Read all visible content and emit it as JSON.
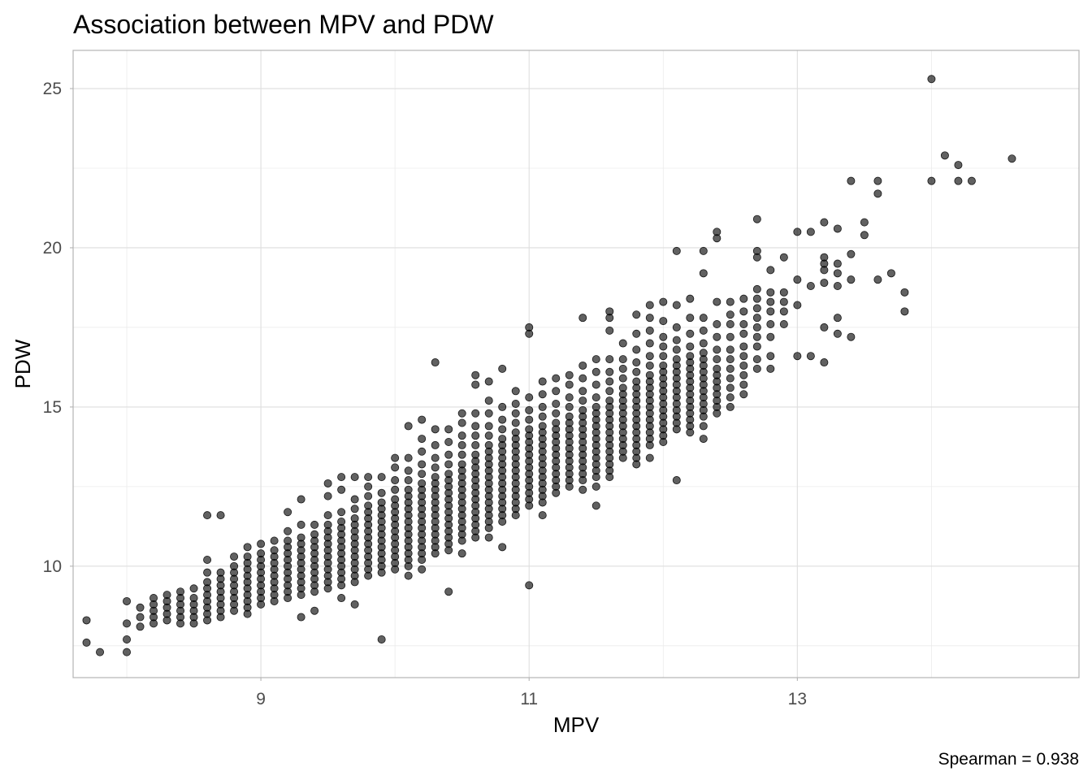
{
  "chart_data": {
    "type": "scatter",
    "title": "Association between MPV and PDW",
    "xlabel": "MPV",
    "ylabel": "PDW",
    "caption": "Spearman = 0.938",
    "xlim": [
      7.6,
      15.1
    ],
    "ylim": [
      6.5,
      26.2
    ],
    "x_ticks": [
      9,
      11,
      13
    ],
    "x_tick_labels": [
      "9",
      "11",
      "13"
    ],
    "x_minor_ticks": [
      8,
      10,
      12,
      14
    ],
    "y_ticks": [
      10,
      15,
      20,
      25
    ],
    "y_tick_labels": [
      "10",
      "15",
      "20",
      "25"
    ],
    "y_minor_ticks": [
      7.5,
      12.5,
      17.5,
      22.5
    ],
    "grid": true,
    "point_color": "#000000",
    "point_alpha": 0.6,
    "columns": [
      {
        "x": 7.7,
        "ys": [
          7.6,
          8.3
        ]
      },
      {
        "x": 7.8,
        "ys": [
          7.3
        ]
      },
      {
        "x": 8.0,
        "ys": [
          7.3,
          7.7,
          8.2,
          8.9
        ]
      },
      {
        "x": 8.1,
        "ys": [
          8.1,
          8.4,
          8.7
        ]
      },
      {
        "x": 8.2,
        "ys": [
          8.2,
          8.4,
          8.6,
          8.8,
          9.0
        ]
      },
      {
        "x": 8.3,
        "ys": [
          8.3,
          8.5,
          8.7,
          8.9,
          9.1
        ]
      },
      {
        "x": 8.4,
        "ys": [
          8.2,
          8.4,
          8.6,
          8.8,
          9.0,
          9.2
        ]
      },
      {
        "x": 8.5,
        "ys": [
          8.2,
          8.4,
          8.6,
          8.8,
          9.0,
          9.3
        ]
      },
      {
        "x": 8.6,
        "ys": [
          8.3,
          8.5,
          8.7,
          8.9,
          9.1,
          9.3,
          9.5,
          9.8,
          10.2,
          11.6
        ]
      },
      {
        "x": 8.7,
        "ys": [
          8.4,
          8.6,
          8.8,
          9.0,
          9.2,
          9.4,
          9.6,
          9.8,
          11.6
        ]
      },
      {
        "x": 8.8,
        "ys": [
          8.6,
          8.8,
          9.0,
          9.2,
          9.4,
          9.6,
          9.8,
          10.0,
          10.3
        ]
      },
      {
        "x": 8.9,
        "ys": [
          8.5,
          8.7,
          8.9,
          9.1,
          9.3,
          9.5,
          9.7,
          9.9,
          10.1,
          10.3,
          10.6
        ]
      },
      {
        "x": 9.0,
        "ys": [
          8.8,
          9.0,
          9.2,
          9.4,
          9.6,
          9.8,
          10.0,
          10.2,
          10.4,
          10.7
        ]
      },
      {
        "x": 9.1,
        "ys": [
          8.9,
          9.1,
          9.3,
          9.5,
          9.7,
          9.9,
          10.1,
          10.3,
          10.5,
          10.8
        ]
      },
      {
        "x": 9.2,
        "ys": [
          9.0,
          9.2,
          9.4,
          9.6,
          9.8,
          10.0,
          10.2,
          10.4,
          10.6,
          10.8,
          11.1,
          11.7
        ]
      },
      {
        "x": 9.3,
        "ys": [
          8.4,
          9.1,
          9.3,
          9.5,
          9.7,
          9.9,
          10.1,
          10.3,
          10.5,
          10.7,
          10.9,
          11.3,
          12.1
        ]
      },
      {
        "x": 9.4,
        "ys": [
          8.6,
          9.2,
          9.4,
          9.6,
          9.8,
          10.0,
          10.2,
          10.4,
          10.6,
          10.8,
          11.0,
          11.3
        ]
      },
      {
        "x": 9.5,
        "ys": [
          9.3,
          9.5,
          9.7,
          9.9,
          10.1,
          10.3,
          10.5,
          10.7,
          10.9,
          11.1,
          11.3,
          11.6,
          12.2,
          12.6
        ]
      },
      {
        "x": 9.6,
        "ys": [
          9.0,
          9.4,
          9.6,
          9.8,
          10.0,
          10.2,
          10.4,
          10.6,
          10.8,
          11.0,
          11.2,
          11.4,
          11.7,
          12.4,
          12.8
        ]
      },
      {
        "x": 9.7,
        "ys": [
          8.8,
          9.5,
          9.7,
          9.9,
          10.1,
          10.3,
          10.5,
          10.7,
          10.9,
          11.1,
          11.3,
          11.5,
          11.8,
          12.1,
          12.8
        ]
      },
      {
        "x": 9.8,
        "ys": [
          9.7,
          9.9,
          10.1,
          10.3,
          10.5,
          10.7,
          10.9,
          11.1,
          11.3,
          11.5,
          11.7,
          11.9,
          12.2,
          12.5,
          12.8
        ]
      },
      {
        "x": 9.9,
        "ys": [
          7.7,
          9.8,
          10.0,
          10.2,
          10.4,
          10.6,
          10.8,
          11.0,
          11.2,
          11.4,
          11.6,
          11.8,
          12.0,
          12.3,
          12.8
        ]
      },
      {
        "x": 10.0,
        "ys": [
          9.9,
          10.1,
          10.3,
          10.5,
          10.7,
          10.9,
          11.1,
          11.3,
          11.5,
          11.7,
          11.9,
          12.1,
          12.4,
          12.7,
          13.1,
          13.4
        ]
      },
      {
        "x": 10.1,
        "ys": [
          9.7,
          10.0,
          10.2,
          10.4,
          10.6,
          10.8,
          11.0,
          11.2,
          11.4,
          11.6,
          11.8,
          12.0,
          12.2,
          12.4,
          12.7,
          13.0,
          13.4,
          14.4
        ]
      },
      {
        "x": 10.2,
        "ys": [
          9.9,
          10.2,
          10.4,
          10.6,
          10.8,
          11.0,
          11.2,
          11.4,
          11.6,
          11.8,
          12.0,
          12.2,
          12.4,
          12.6,
          12.9,
          13.2,
          13.6,
          14.0,
          14.6
        ]
      },
      {
        "x": 10.3,
        "ys": [
          10.4,
          10.6,
          10.8,
          11.0,
          11.2,
          11.4,
          11.6,
          11.8,
          12.0,
          12.2,
          12.4,
          12.6,
          12.8,
          13.1,
          13.4,
          13.8,
          14.3,
          16.4
        ]
      },
      {
        "x": 10.4,
        "ys": [
          9.2,
          10.5,
          10.7,
          10.9,
          11.1,
          11.3,
          11.5,
          11.7,
          11.9,
          12.1,
          12.3,
          12.5,
          12.7,
          12.9,
          13.2,
          13.5,
          13.9,
          14.3
        ]
      },
      {
        "x": 10.5,
        "ys": [
          10.4,
          10.8,
          11.0,
          11.2,
          11.4,
          11.6,
          11.8,
          12.0,
          12.2,
          12.4,
          12.6,
          12.8,
          13.0,
          13.2,
          13.5,
          13.8,
          14.1,
          14.5,
          14.8
        ]
      },
      {
        "x": 10.6,
        "ys": [
          10.9,
          11.1,
          11.3,
          11.5,
          11.7,
          11.9,
          12.1,
          12.3,
          12.5,
          12.7,
          12.9,
          13.1,
          13.3,
          13.5,
          13.8,
          14.1,
          14.4,
          14.8,
          15.7,
          16.0
        ]
      },
      {
        "x": 10.7,
        "ys": [
          10.9,
          11.2,
          11.4,
          11.6,
          11.8,
          12.0,
          12.2,
          12.4,
          12.6,
          12.8,
          13.0,
          13.2,
          13.4,
          13.6,
          13.8,
          14.1,
          14.4,
          14.8,
          15.2,
          15.8
        ]
      },
      {
        "x": 10.8,
        "ys": [
          10.6,
          11.4,
          11.6,
          11.8,
          12.0,
          12.2,
          12.4,
          12.6,
          12.8,
          13.0,
          13.2,
          13.4,
          13.6,
          13.8,
          14.0,
          14.3,
          14.6,
          15.0,
          16.2
        ]
      },
      {
        "x": 10.9,
        "ys": [
          11.6,
          11.8,
          12.0,
          12.2,
          12.4,
          12.6,
          12.8,
          13.0,
          13.2,
          13.4,
          13.6,
          13.8,
          14.0,
          14.2,
          14.5,
          14.8,
          15.1,
          15.5
        ]
      },
      {
        "x": 11.0,
        "ys": [
          9.4,
          11.9,
          12.1,
          12.3,
          12.5,
          12.7,
          12.9,
          13.1,
          13.3,
          13.5,
          13.7,
          13.9,
          14.1,
          14.3,
          14.6,
          14.9,
          15.3,
          17.3,
          17.5
        ]
      },
      {
        "x": 11.1,
        "ys": [
          11.6,
          12.0,
          12.2,
          12.4,
          12.6,
          12.8,
          13.0,
          13.2,
          13.4,
          13.6,
          13.8,
          14.0,
          14.2,
          14.4,
          14.7,
          15.0,
          15.4,
          15.8
        ]
      },
      {
        "x": 11.2,
        "ys": [
          12.3,
          12.5,
          12.7,
          12.9,
          13.1,
          13.3,
          13.5,
          13.7,
          13.9,
          14.1,
          14.3,
          14.5,
          14.8,
          15.1,
          15.5,
          15.9
        ]
      },
      {
        "x": 11.3,
        "ys": [
          12.5,
          12.7,
          12.9,
          13.1,
          13.3,
          13.5,
          13.7,
          13.9,
          14.1,
          14.3,
          14.5,
          14.7,
          15.0,
          15.3,
          15.7,
          16.0
        ]
      },
      {
        "x": 11.4,
        "ys": [
          12.4,
          12.7,
          12.9,
          13.1,
          13.3,
          13.5,
          13.7,
          13.9,
          14.1,
          14.3,
          14.5,
          14.7,
          14.9,
          15.2,
          15.5,
          15.9,
          16.3,
          17.8
        ]
      },
      {
        "x": 11.5,
        "ys": [
          11.9,
          12.5,
          12.8,
          13.0,
          13.2,
          13.4,
          13.6,
          13.8,
          14.0,
          14.2,
          14.4,
          14.6,
          14.8,
          15.0,
          15.3,
          15.7,
          16.1,
          16.5
        ]
      },
      {
        "x": 11.6,
        "ys": [
          12.8,
          13.0,
          13.2,
          13.4,
          13.6,
          13.8,
          14.0,
          14.2,
          14.4,
          14.6,
          14.8,
          15.0,
          15.2,
          15.5,
          15.8,
          16.1,
          16.5,
          17.4,
          17.8,
          18.0
        ]
      },
      {
        "x": 11.7,
        "ys": [
          13.4,
          13.6,
          13.8,
          14.0,
          14.2,
          14.4,
          14.6,
          14.8,
          15.0,
          15.2,
          15.4,
          15.6,
          15.9,
          16.2,
          16.5,
          17.0
        ]
      },
      {
        "x": 11.8,
        "ys": [
          13.2,
          13.4,
          13.6,
          13.8,
          14.0,
          14.2,
          14.4,
          14.6,
          14.8,
          15.0,
          15.2,
          15.4,
          15.6,
          15.8,
          16.1,
          16.4,
          16.8,
          17.3,
          17.9
        ]
      },
      {
        "x": 11.9,
        "ys": [
          13.4,
          13.8,
          14.0,
          14.2,
          14.4,
          14.6,
          14.8,
          15.0,
          15.2,
          15.4,
          15.6,
          15.8,
          16.0,
          16.3,
          16.6,
          17.0,
          17.4,
          17.8,
          18.2
        ]
      },
      {
        "x": 12.0,
        "ys": [
          13.9,
          14.1,
          14.3,
          14.5,
          14.7,
          14.9,
          15.1,
          15.3,
          15.5,
          15.7,
          15.9,
          16.1,
          16.3,
          16.6,
          16.9,
          17.2,
          17.7,
          18.3
        ]
      },
      {
        "x": 12.1,
        "ys": [
          12.7,
          14.3,
          14.5,
          14.7,
          14.9,
          15.1,
          15.3,
          15.5,
          15.7,
          15.9,
          16.1,
          16.3,
          16.5,
          16.8,
          17.1,
          17.5,
          18.2,
          19.9
        ]
      },
      {
        "x": 12.2,
        "ys": [
          14.2,
          14.4,
          14.6,
          14.8,
          15.0,
          15.2,
          15.4,
          15.6,
          15.8,
          16.0,
          16.2,
          16.4,
          16.6,
          16.9,
          17.3,
          17.8,
          18.4
        ]
      },
      {
        "x": 12.3,
        "ys": [
          14.0,
          14.4,
          14.7,
          14.9,
          15.1,
          15.3,
          15.5,
          15.7,
          15.9,
          16.1,
          16.3,
          16.5,
          16.7,
          17.0,
          17.4,
          17.8,
          19.2,
          19.9
        ]
      },
      {
        "x": 12.4,
        "ys": [
          14.8,
          15.0,
          15.2,
          15.4,
          15.6,
          15.8,
          16.0,
          16.2,
          16.5,
          16.8,
          17.2,
          17.6,
          18.3,
          20.3,
          20.5
        ]
      },
      {
        "x": 12.5,
        "ys": [
          15.0,
          15.3,
          15.6,
          15.9,
          16.2,
          16.5,
          16.8,
          17.2,
          17.6,
          17.9,
          18.3
        ]
      },
      {
        "x": 12.6,
        "ys": [
          15.4,
          15.7,
          16.0,
          16.3,
          16.6,
          16.9,
          17.3,
          17.6,
          18.0,
          18.4
        ]
      },
      {
        "x": 12.7,
        "ys": [
          16.2,
          16.5,
          16.9,
          17.2,
          17.5,
          17.8,
          18.1,
          18.4,
          18.7,
          19.7,
          19.9,
          20.9
        ]
      },
      {
        "x": 12.8,
        "ys": [
          16.2,
          16.6,
          17.2,
          17.6,
          18.0,
          18.3,
          18.6,
          19.3
        ]
      },
      {
        "x": 12.9,
        "ys": [
          17.6,
          18.0,
          18.3,
          18.6,
          19.7
        ]
      },
      {
        "x": 13.0,
        "ys": [
          16.6,
          18.2,
          19.0,
          20.5
        ]
      },
      {
        "x": 13.1,
        "ys": [
          16.6,
          18.8,
          20.5
        ]
      },
      {
        "x": 13.2,
        "ys": [
          16.4,
          17.5,
          18.9,
          19.3,
          19.5,
          19.7,
          20.8
        ]
      },
      {
        "x": 13.3,
        "ys": [
          17.3,
          17.8,
          18.8,
          19.2,
          19.5,
          20.6
        ]
      },
      {
        "x": 13.4,
        "ys": [
          17.2,
          19.0,
          19.8,
          22.1
        ]
      },
      {
        "x": 13.5,
        "ys": [
          20.4,
          20.8
        ]
      },
      {
        "x": 13.6,
        "ys": [
          19.0,
          21.7,
          22.1
        ]
      },
      {
        "x": 13.7,
        "ys": [
          19.2
        ]
      },
      {
        "x": 13.8,
        "ys": [
          18.0,
          18.6
        ]
      },
      {
        "x": 14.0,
        "ys": [
          22.1,
          25.3
        ]
      },
      {
        "x": 14.1,
        "ys": [
          22.9
        ]
      },
      {
        "x": 14.2,
        "ys": [
          22.1,
          22.6
        ]
      },
      {
        "x": 14.3,
        "ys": [
          22.1
        ]
      },
      {
        "x": 14.6,
        "ys": [
          22.8
        ]
      }
    ]
  }
}
